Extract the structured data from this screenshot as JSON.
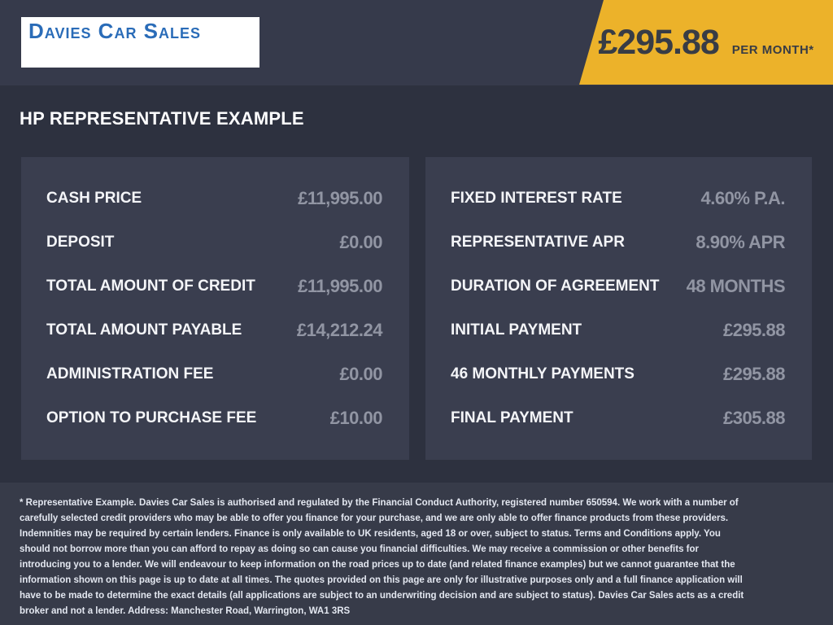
{
  "header": {
    "logo": "Davies Car Sales",
    "banner": {
      "amount": "£295.88",
      "period": "PER MONTH*"
    }
  },
  "heading": "HP REPRESENTATIVE EXAMPLE",
  "panels": {
    "left": [
      {
        "label": "CASH PRICE",
        "value": "£11,995.00"
      },
      {
        "label": "DEPOSIT",
        "value": "£0.00"
      },
      {
        "label": "TOTAL AMOUNT OF CREDIT",
        "value": "£11,995.00"
      },
      {
        "label": "TOTAL AMOUNT PAYABLE",
        "value": "£14,212.24"
      },
      {
        "label": "ADMINISTRATION FEE",
        "value": "£0.00"
      },
      {
        "label": "OPTION TO PURCHASE FEE",
        "value": "£10.00"
      }
    ],
    "right": [
      {
        "label": "FIXED INTEREST RATE",
        "value": "4.60% P.A."
      },
      {
        "label": "REPRESENTATIVE APR",
        "value": "8.90% APR"
      },
      {
        "label": "DURATION OF AGREEMENT",
        "value": "48 MONTHS"
      },
      {
        "label": "INITIAL PAYMENT",
        "value": "£295.88"
      },
      {
        "label": "46 MONTHLY PAYMENTS",
        "value": "£295.88"
      },
      {
        "label": "FINAL PAYMENT",
        "value": "£305.88"
      }
    ]
  },
  "footer": {
    "disclaimer": "* Representative Example. Davies Car Sales  is authorised and regulated by the Financial Conduct Authority, registered number 650594. We work with a number of carefully selected credit providers who may be able to offer you finance for your purchase, and we are only able to offer finance products from these providers. Indemnities may be required by certain lenders. Finance is only available to UK residents, aged 18 or over, subject to status. Terms and Conditions apply. You should not borrow more than you can afford to repay as doing so can cause you financial difficulties. We may receive a commission or other benefits for introducing you to a lender. We will endeavour to keep information on the road prices up to date (and related finance examples) but we cannot guarantee that the information shown on this page is up to date at all times. The quotes provided on this page are only for illustrative purposes only and a full finance application will have to be made to determine the exact details (all applications are subject to an underwriting decision and are subject to status). Davies Car Sales  acts as a credit broker and not a lender. Address: Manchester Road, Warrington, WA1 3RS"
  },
  "colors": {
    "header_bg": "#363a4b",
    "main_bg": "#2d313f",
    "panel_bg": "#3a3e4f",
    "footer_bg": "#373b49",
    "accent_yellow": "#ecb22a",
    "logo_blue": "#2a6cb8",
    "label_white": "#f4f5f8",
    "value_gray": "#9195a3",
    "banner_text": "#383c45"
  }
}
